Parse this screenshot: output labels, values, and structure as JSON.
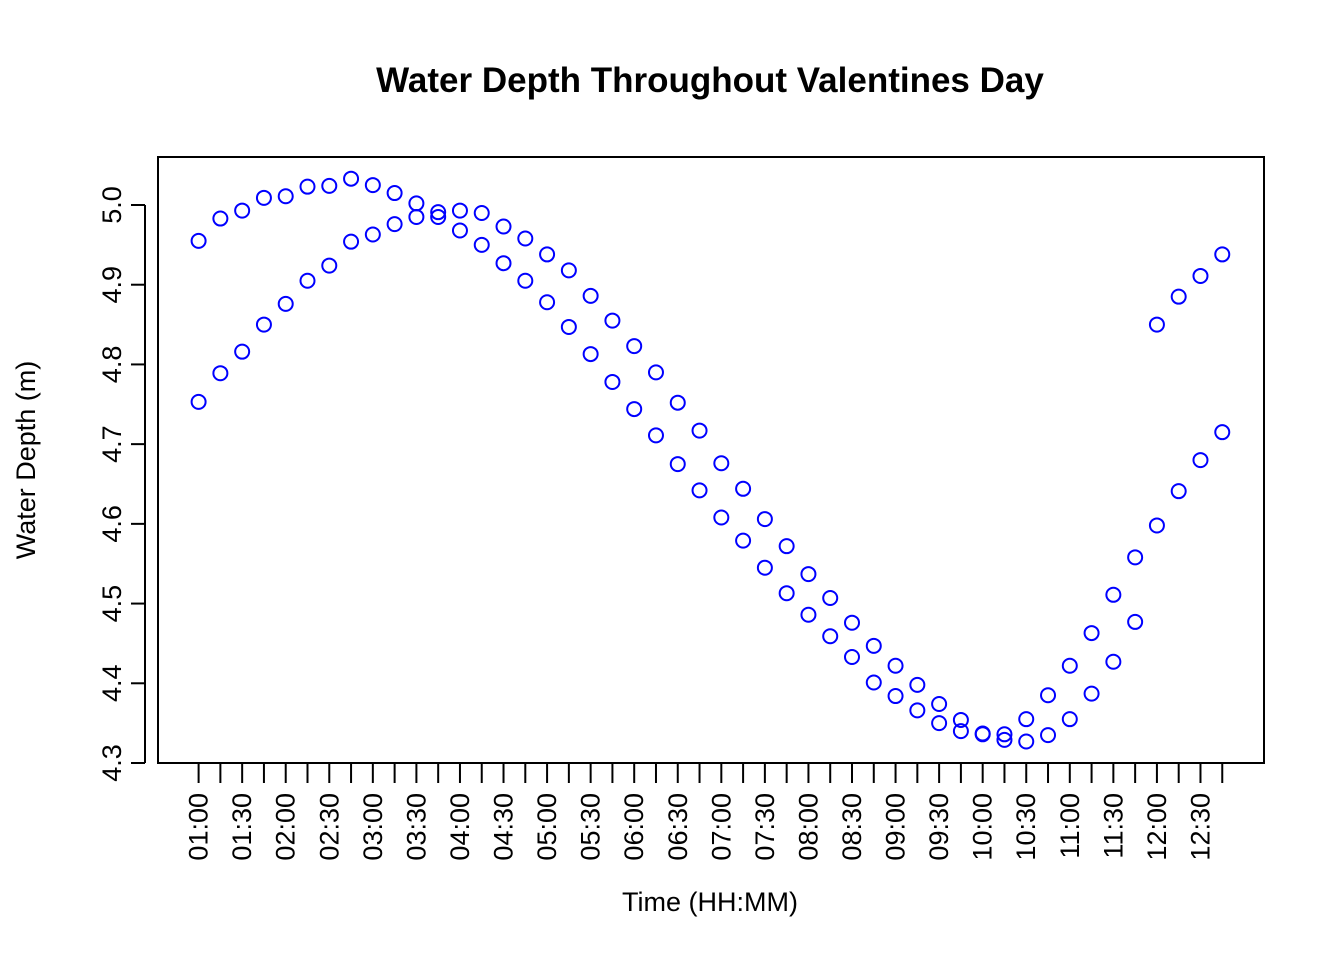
{
  "chart_data": {
    "type": "scatter",
    "title": "Water Depth Throughout Valentines Day",
    "xlabel": "Time (HH:MM)",
    "ylabel": "Water Depth (m)",
    "ylim": [
      4.3,
      5.05
    ],
    "yticks": [
      "4.3",
      "4.4",
      "4.5",
      "4.6",
      "4.7",
      "4.8",
      "4.9",
      "5.0"
    ],
    "xticks": [
      "01:00",
      "01:15",
      "01:30",
      "01:45",
      "02:00",
      "02:15",
      "02:30",
      "02:45",
      "03:00",
      "03:15",
      "03:30",
      "03:45",
      "04:00",
      "04:15",
      "04:30",
      "04:45",
      "05:00",
      "05:15",
      "05:30",
      "05:45",
      "06:00",
      "06:15",
      "06:30",
      "06:45",
      "07:00",
      "07:15",
      "07:30",
      "07:45",
      "08:00",
      "08:15",
      "08:30",
      "08:45",
      "09:00",
      "09:15",
      "09:30",
      "09:45",
      "10:00",
      "10:15",
      "10:30",
      "10:45",
      "11:00",
      "11:15",
      "11:30",
      "11:45",
      "12:00",
      "12:15",
      "12:30",
      "12:45"
    ],
    "xticklabels": [
      "01:00",
      "",
      "01:30",
      "",
      "02:00",
      "",
      "02:30",
      "",
      "03:00",
      "",
      "03:30",
      "",
      "04:00",
      "",
      "04:30",
      "",
      "05:00",
      "",
      "05:30",
      "",
      "06:00",
      "",
      "06:30",
      "",
      "07:00",
      "",
      "07:30",
      "",
      "08:00",
      "",
      "08:30",
      "",
      "09:00",
      "",
      "09:30",
      "",
      "10:00",
      "",
      "10:30",
      "",
      "11:00",
      "",
      "11:30",
      "",
      "12:00",
      "",
      "12:30",
      ""
    ],
    "grid": false,
    "marker_color": "#0000ff",
    "series": [
      {
        "values": [
          4.955,
          4.983,
          4.993,
          5.009,
          5.011,
          5.023,
          5.024,
          5.033,
          5.025,
          5.015,
          5.002,
          4.991,
          4.993,
          4.99,
          4.973,
          4.958,
          4.938,
          4.918,
          4.886,
          4.855,
          4.823,
          4.79,
          4.752,
          4.717,
          4.676,
          4.644,
          4.606,
          4.572,
          4.537,
          4.507,
          4.476,
          4.447,
          4.422,
          4.398,
          4.374,
          4.354,
          4.337,
          4.336,
          4.355,
          4.385,
          4.422,
          4.463,
          4.511,
          4.558,
          4.598,
          4.641,
          4.68,
          4.715
        ]
      },
      {
        "values": [
          4.753,
          4.789,
          4.816,
          4.85,
          4.876,
          4.905,
          4.924,
          4.954,
          4.963,
          4.976,
          4.985,
          4.985,
          4.968,
          4.95,
          4.927,
          4.905,
          4.878,
          4.847,
          4.813,
          4.778,
          4.744,
          4.711,
          4.675,
          4.642,
          4.608,
          4.579,
          4.545,
          4.513,
          4.486,
          4.459,
          4.433,
          4.401,
          4.384,
          4.366,
          4.35,
          4.34,
          4.336,
          4.329,
          4.327,
          4.335,
          4.355,
          4.387,
          4.427,
          4.477,
          4.85,
          4.885,
          4.911,
          4.938
        ]
      }
    ]
  }
}
